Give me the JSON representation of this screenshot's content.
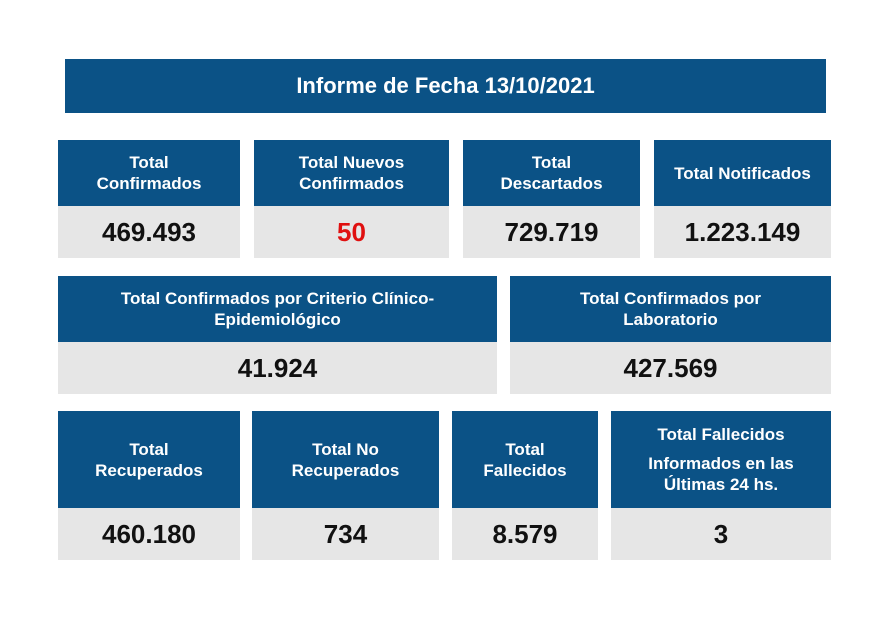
{
  "title": "Informe de Fecha 13/10/2021",
  "row1": [
    {
      "label": "Total\nConfirmados",
      "value": "469.493"
    },
    {
      "label": "Total Nuevos\nConfirmados",
      "value": "50"
    },
    {
      "label": "Total\nDescartados",
      "value": "729.719"
    },
    {
      "label": "Total Notificados",
      "value": "1.223.149"
    }
  ],
  "row2": [
    {
      "label": "Total Confirmados por Criterio Clínico-\nEpidemiológico",
      "value": "41.924"
    },
    {
      "label": "Total Confirmados por\nLaboratorio",
      "value": "427.569"
    }
  ],
  "row3": [
    {
      "label": "Total\nRecuperados",
      "value": "460.180"
    },
    {
      "label": "Total No\nRecuperados",
      "value": "734"
    },
    {
      "label": "Total\nFallecidos",
      "value": "8.579"
    },
    {
      "label": "Total Fallecidos",
      "sublabel": "Informados en las\nÚltimas 24 hs.",
      "value": "3"
    }
  ],
  "colors": {
    "header_bg": "#0b5286",
    "value_bg": "#e6e6e6",
    "highlight": "#e01010"
  }
}
